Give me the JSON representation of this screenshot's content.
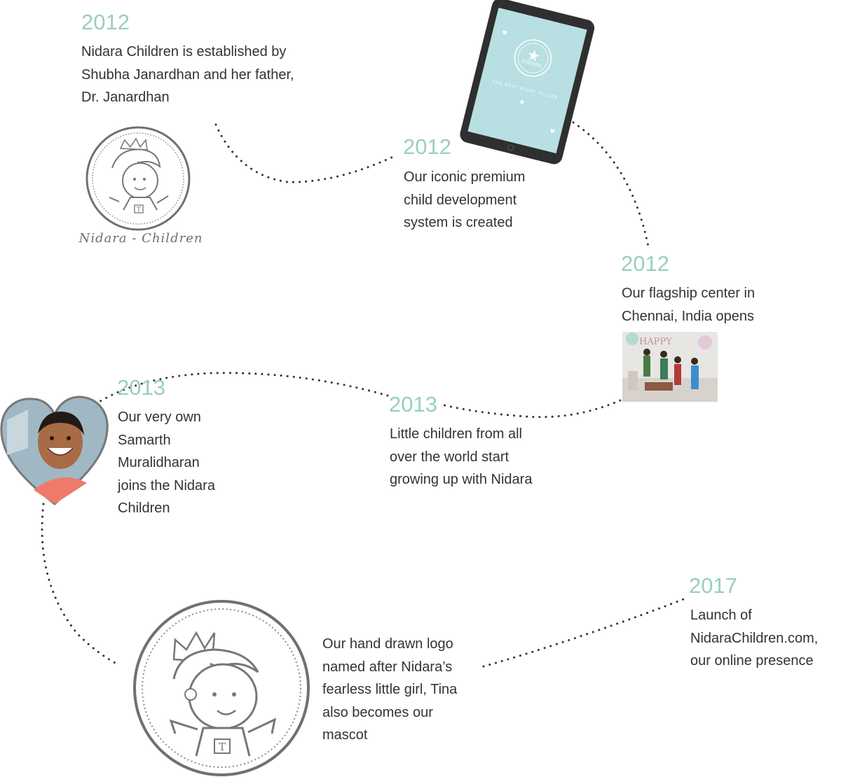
{
  "accent_color": "#97cfc2",
  "path_color": "#333333",
  "milestones": [
    {
      "year": "2012",
      "text": "Nidara Children is established by\nShubha Janardhan and her father,\nDr. Janardhan"
    },
    {
      "year": "2012",
      "text": "Our iconic premium\nchild development\nsystem is created"
    },
    {
      "year": "2012",
      "text": "Our flagship center in\nChennai, India opens"
    },
    {
      "year": "2013",
      "text": "Our very own\nSamarth\nMuralidharan\njoins the Nidara\nChildren"
    },
    {
      "year": "2013",
      "text": "Little children from all\nover the world start\ngrowing up with Nidara"
    },
    {
      "year": "",
      "text": "Our hand drawn logo\nnamed after Nidara’s\nfearless little girl, Tina\nalso becomes our\nmascot"
    },
    {
      "year": "2017",
      "text": "Launch of\nNidaraChildren.com,\nour online presence"
    }
  ],
  "images": {
    "logo_small": {
      "icon": "tina-logo-icon",
      "caption": "Nidara - Children"
    },
    "tablet": {
      "icon": "tablet-icon",
      "brand": "NIDARA",
      "tagline": "THE BEST START IN LIFE"
    },
    "center_photo": {
      "icon": "party-photo-icon",
      "banner": "HAPPY"
    },
    "heart_photo": {
      "icon": "child-portrait-icon"
    },
    "logo_large": {
      "icon": "tina-logo-icon"
    }
  }
}
